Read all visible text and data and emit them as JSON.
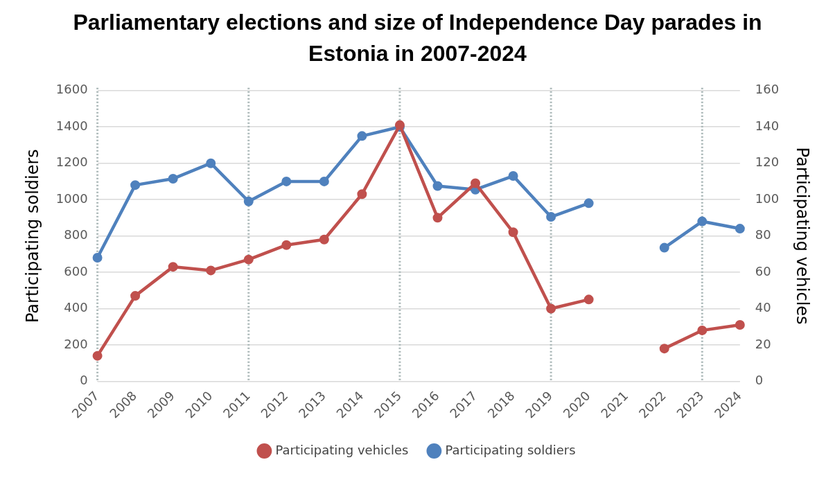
{
  "chart_data": {
    "type": "line",
    "title": "Parliamentary elections and size of Independence Day parades in Estonia in 2007-2024",
    "categories": [
      "2007",
      "2008",
      "2009",
      "2010",
      "2011",
      "2012",
      "2013",
      "2014",
      "2015",
      "2016",
      "2017",
      "2018",
      "2019",
      "2020",
      "2021",
      "2022",
      "2023",
      "2024"
    ],
    "series": [
      {
        "name": "Participating soldiers",
        "color": "#4f81bd",
        "values": [
          680,
          1080,
          1115,
          1200,
          990,
          1100,
          1100,
          1350,
          1400,
          1075,
          1055,
          1130,
          905,
          980,
          null,
          735,
          880,
          840
        ]
      },
      {
        "name": "Participating vehicles",
        "color": "#c0504d",
        "axis": "y2",
        "values": [
          14,
          47,
          63,
          61,
          67,
          75,
          78,
          103,
          141,
          90,
          109,
          82,
          40,
          45,
          null,
          18,
          28,
          31
        ]
      }
    ],
    "ylabel": "Participating soldiers",
    "y2label": "Participating vehicles",
    "ylim": [
      0,
      1600
    ],
    "yticks": [
      0,
      200,
      400,
      600,
      800,
      1000,
      1200,
      1400,
      1600
    ],
    "y2lim": [
      0,
      160
    ],
    "y2ticks": [
      0,
      20,
      40,
      60,
      80,
      100,
      120,
      140,
      160
    ],
    "ref_lines": [
      {
        "axis": "x",
        "value": "2007",
        "color": "#a6b4b4",
        "line_style": "dotted"
      },
      {
        "axis": "x",
        "value": "2011",
        "color": "#a6b4b4",
        "line_style": "dotted"
      },
      {
        "axis": "x",
        "value": "2015",
        "color": "#a6b4b4",
        "line_style": "dotted"
      },
      {
        "axis": "x",
        "value": "2019",
        "color": "#a6b4b4",
        "line_style": "dotted"
      },
      {
        "axis": "x",
        "value": "2023",
        "color": "#a6b4b4",
        "line_style": "dotted"
      }
    ],
    "grid": "y",
    "legend": "bottom",
    "marker": "circle",
    "line_style": "solid"
  }
}
